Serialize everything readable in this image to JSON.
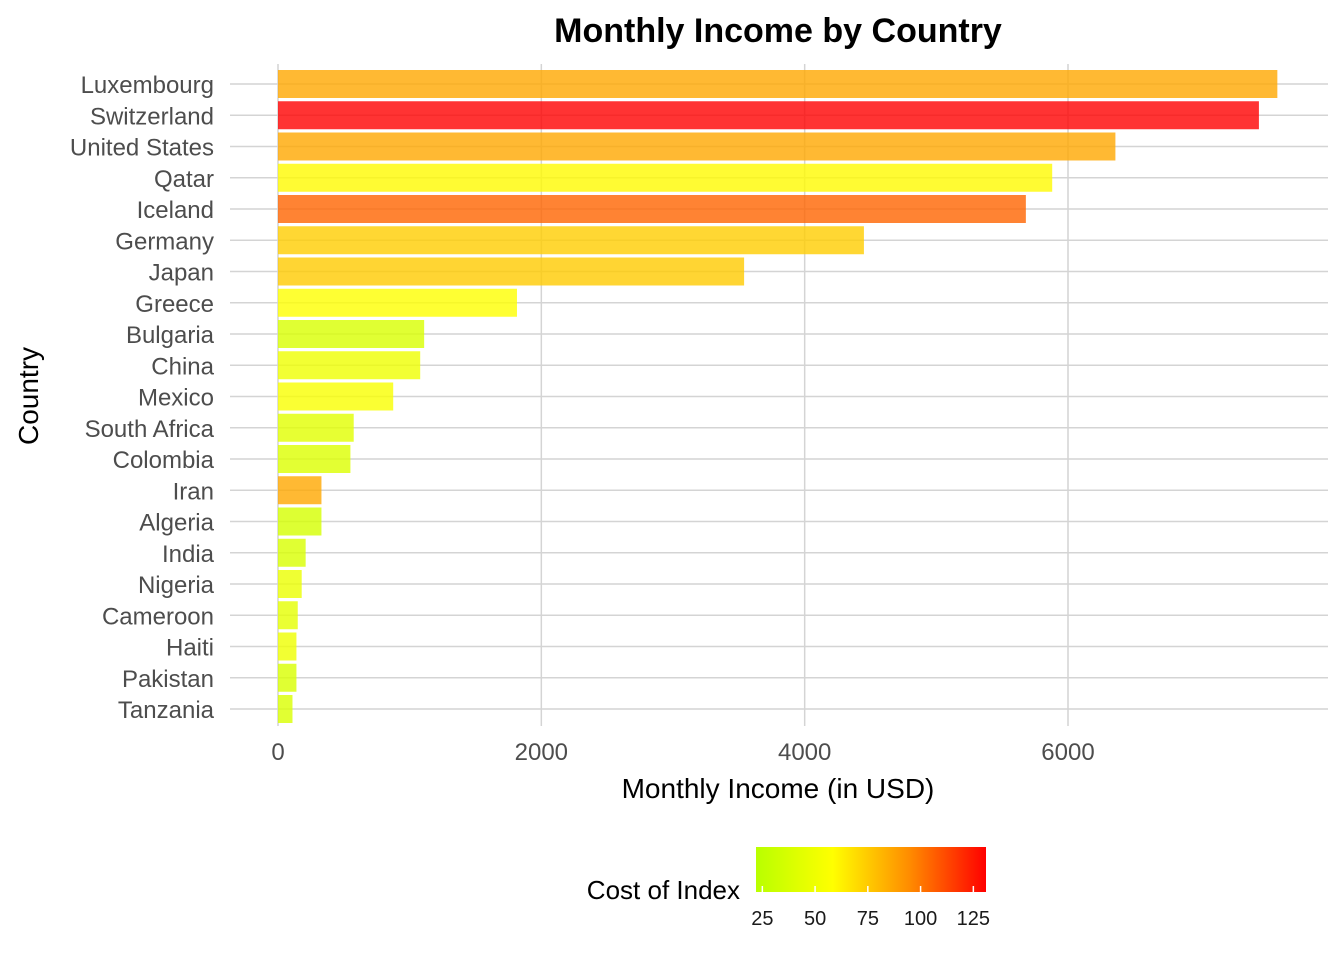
{
  "chart_data": {
    "type": "bar",
    "orientation": "horizontal",
    "title": "Monthly Income by Country",
    "xlabel": "Monthly Income (in USD)",
    "ylabel": "Country",
    "xlim": [
      0,
      7800
    ],
    "x_ticks": [
      0,
      2000,
      4000,
      6000
    ],
    "grid": true,
    "legend_position": "bottom",
    "legend": {
      "title": "Cost of Index",
      "type": "gradient",
      "ticks": [
        25,
        50,
        75,
        100,
        125
      ],
      "range": [
        22,
        131
      ],
      "colors": [
        "#b9ff00",
        "#ffff00",
        "#ff8c00",
        "#ff0000"
      ]
    },
    "categories": [
      "Luxembourg",
      "Switzerland",
      "United States",
      "Qatar",
      "Iceland",
      "Germany",
      "Japan",
      "Greece",
      "Bulgaria",
      "China",
      "Mexico",
      "South Africa",
      "Colombia",
      "Iran",
      "Algeria",
      "India",
      "Nigeria",
      "Cameroon",
      "Haiti",
      "Pakistan",
      "Tanzania"
    ],
    "values": [
      7590,
      7450,
      6360,
      5880,
      5680,
      4450,
      3540,
      1815,
      1110,
      1080,
      875,
      575,
      550,
      330,
      330,
      210,
      180,
      150,
      140,
      140,
      110
    ],
    "cost_index": [
      86,
      131,
      86,
      60,
      105,
      74,
      75,
      58,
      38,
      50,
      55,
      43,
      40,
      86,
      36,
      38,
      48,
      45,
      50,
      38,
      39
    ]
  }
}
